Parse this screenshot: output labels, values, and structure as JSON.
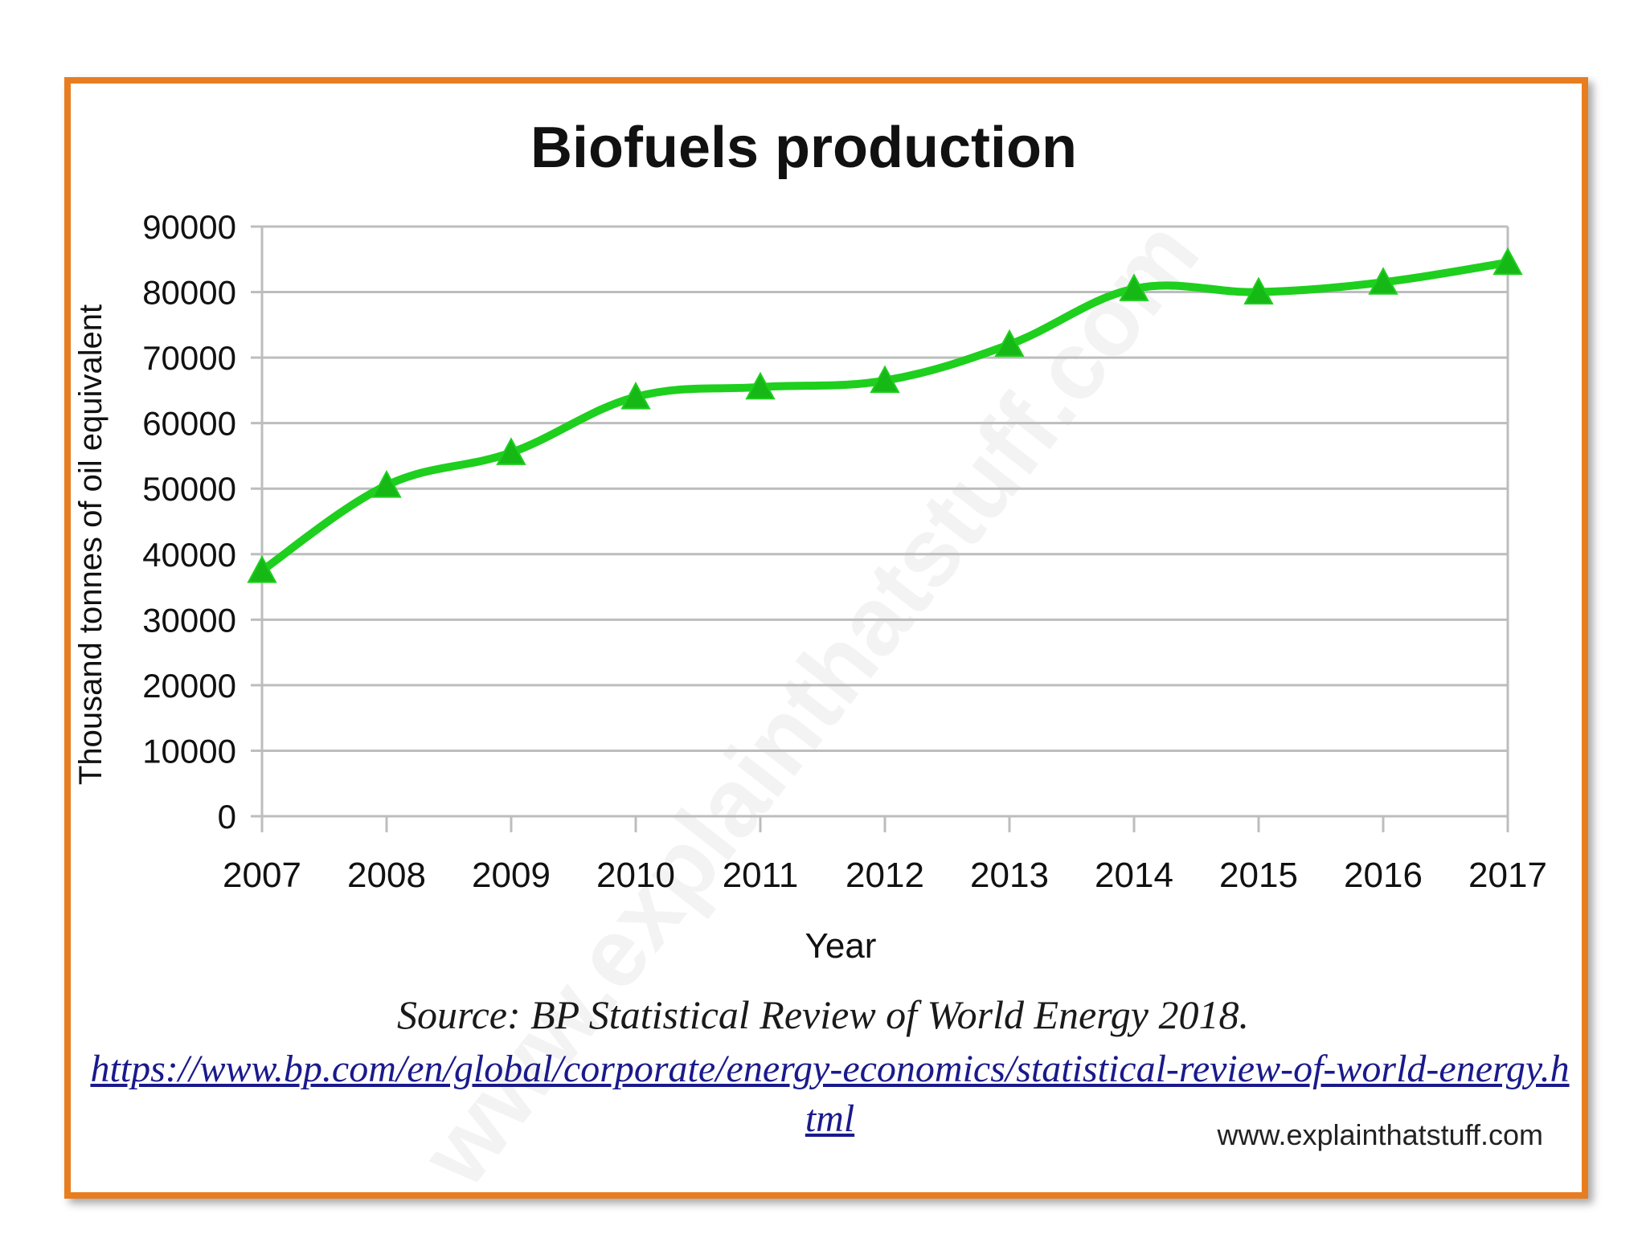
{
  "chart_data": {
    "type": "line",
    "title": "Biofuels production",
    "xlabel": "Year",
    "ylabel": "Thousand tonnes of oil equivalent",
    "categories": [
      "2007",
      "2008",
      "2009",
      "2010",
      "2011",
      "2012",
      "2013",
      "2014",
      "2015",
      "2016",
      "2017"
    ],
    "series": [
      {
        "name": "Biofuels production",
        "values": [
          37500,
          50500,
          55500,
          64000,
          65500,
          66500,
          72000,
          80500,
          80000,
          81500,
          84500
        ],
        "color": "#1ecf1e",
        "marker": "triangle"
      }
    ],
    "ylim": [
      0,
      90000
    ],
    "yticks": [
      0,
      10000,
      20000,
      30000,
      40000,
      50000,
      60000,
      70000,
      80000,
      90000
    ],
    "ytick_labels": [
      "0",
      "10000",
      "20000",
      "30000",
      "40000",
      "50000",
      "60000",
      "70000",
      "80000",
      "90000"
    ],
    "grid": true,
    "legend": "none"
  },
  "source": {
    "text": "Source: BP Statistical Review of World Energy 2018.",
    "url": "https://www.bp.com/en/global/corporate/energy-economics/statistical-review-of-world-energy.html"
  },
  "credit": "www.explainthatstuff.com",
  "watermark": "www.explainthatstuff.com",
  "colors": {
    "frame": "#e87d20",
    "line": "#1ecf1e",
    "marker": "#16b816",
    "grid": "#bdbdbd",
    "link": "#1a1a8c"
  }
}
